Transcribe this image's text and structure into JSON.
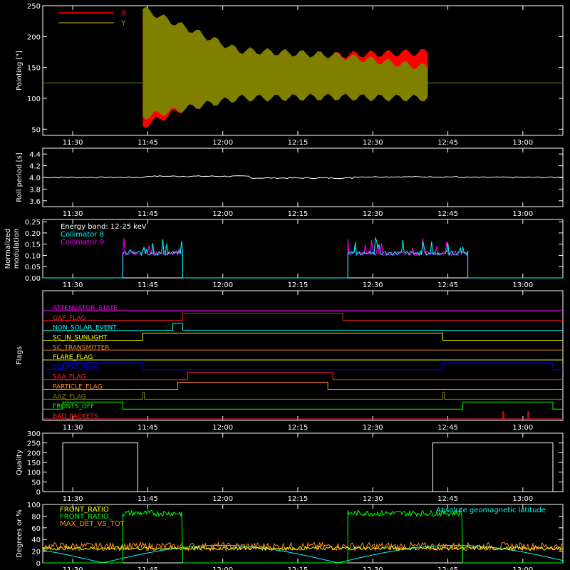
{
  "colors": {
    "axis": "#ffffff",
    "x_series": "#ff0000",
    "y_series": "#808000",
    "cyan": "#00ffff",
    "magenta": "#ff00ff",
    "green": "#00ff00",
    "orange": "#ff8c1a",
    "yellow": "#ffff00",
    "blue": "#0000ff",
    "bright_red": "#ff2020"
  },
  "time_ticks": [
    "11:30",
    "11:45",
    "12:00",
    "12:15",
    "12:30",
    "12:45",
    "13:00"
  ],
  "chart_data": [
    {
      "type": "area",
      "ylabel": "Pointing [\"]",
      "ylim": [
        40,
        250
      ],
      "yticks": [
        50,
        100,
        150,
        200,
        250
      ],
      "series": [
        {
          "name": "X",
          "segments": [
            {
              "start": "11:44",
              "end": "12:41",
              "upper": [
                240,
                175,
                170,
                175
              ],
              "lower": [
                55,
                120,
                102,
                100
              ]
            }
          ]
        },
        {
          "name": "Y",
          "segments": [
            {
              "start": "11:44",
              "end": "12:41",
              "upper": [
                245,
                178,
                170,
                150
              ],
              "lower": [
                70,
                100,
                102,
                100
              ]
            }
          ]
        }
      ],
      "baseline": 125
    },
    {
      "type": "line",
      "ylabel": "Roll period [s]",
      "ylim": [
        3.5,
        4.5
      ],
      "yticks": [
        "3.6",
        "3.8",
        "4.0",
        "4.2",
        "4.4"
      ],
      "series": [
        {
          "name": "",
          "values": [
            4.0,
            4.02,
            3.99,
            4.01,
            4.0,
            4.0
          ]
        }
      ]
    },
    {
      "type": "line",
      "ylabel": "Normalized modulation",
      "ylim": [
        0,
        0.26
      ],
      "yticks": [
        "0.00",
        "0.05",
        "0.10",
        "0.15",
        "0.20",
        "0.25"
      ],
      "annotation": "Energy band: 12-25 keV",
      "series": [
        {
          "name": "Collimator 8",
          "active": [
            [
              "11:40",
              "11:52"
            ],
            [
              "12:25",
              "12:49"
            ]
          ],
          "level": 0.1
        },
        {
          "name": "Collimator 9",
          "active": [
            [
              "11:40",
              "11:52"
            ],
            [
              "12:25",
              "12:49"
            ]
          ],
          "level": 0.1
        }
      ]
    },
    {
      "type": "line",
      "ylabel": "Flags",
      "series": [
        {
          "name": "ATTENUATOR_STATE",
          "color": "#ff00ff",
          "on": []
        },
        {
          "name": "GAP_FLAG",
          "color": "#ff2020",
          "on": [
            [
              "11:52",
              "12:24"
            ]
          ]
        },
        {
          "name": "NON_SOLAR_EVENT",
          "color": "#00ffff",
          "on": [
            [
              "11:50",
              "11:52"
            ]
          ]
        },
        {
          "name": "SC_IN_SUNLIGHT",
          "color": "#ffff00",
          "on": [
            [
              "11:44",
              "12:44"
            ]
          ]
        },
        {
          "name": "SC_TRANSMITTER",
          "color": "#ff8c1a",
          "on": []
        },
        {
          "name": "FLARE_FLAG",
          "color": "#ffff00",
          "on": []
        },
        {
          "name": "ECLIPSE_FLAG",
          "color": "#0000ff",
          "on": [
            [
              "11:28",
              "11:44"
            ],
            [
              "12:44",
              "13:06"
            ]
          ]
        },
        {
          "name": "SAA_FLAG",
          "color": "#ff2020",
          "on": [
            [
              "11:53",
              "12:22"
            ]
          ]
        },
        {
          "name": "PARTICLE_FLAG",
          "color": "#ff8c1a",
          "on": [
            [
              "11:51",
              "12:21"
            ]
          ]
        },
        {
          "name": "AAZ_FLAG",
          "color": "#808000",
          "on": [
            [
              "11:44",
              "11:44.3"
            ],
            [
              "12:44",
              "12:44.3"
            ]
          ]
        },
        {
          "name": "FRONTS_OFF",
          "color": "#00ff00",
          "on": [
            [
              "11:28",
              "11:40"
            ],
            [
              "12:48",
              "13:06"
            ]
          ]
        },
        {
          "name": "BAD_PACKETS",
          "color": "#ff2020",
          "on": [
            [
              "12:56",
              "12:56.2"
            ],
            [
              "13:01",
              "13:01.2"
            ]
          ]
        }
      ]
    },
    {
      "type": "line",
      "ylabel": "Quality",
      "ylim": [
        0,
        300
      ],
      "yticks": [
        0,
        50,
        100,
        150,
        200,
        250,
        300
      ],
      "series": [
        {
          "name": "",
          "segments": [
            [
              "11:28",
              "11:43",
              250
            ],
            [
              "12:42",
              "13:06",
              250
            ]
          ]
        }
      ]
    },
    {
      "type": "line",
      "ylabel": "Degrees or %",
      "ylim": [
        0,
        100
      ],
      "yticks": [
        0,
        20,
        40,
        60,
        80,
        100
      ],
      "annotation": "Absolute geomagnetic latitude",
      "series": [
        {
          "name": "FRONT_RATIO",
          "color": "#ffff00",
          "level": 25
        },
        {
          "name": "FRONT_RATIO_",
          "color": "#00ff00",
          "active": [
            [
              "11:40",
              "11:52"
            ],
            [
              "12:25",
              "12:48"
            ]
          ],
          "level": 85
        },
        {
          "name": "MAX_DET_VS_TOT",
          "color": "#ff8c1a",
          "level": 28
        },
        {
          "name": "Absolute geomagnetic latitude",
          "color": "#00ffff",
          "min": 0,
          "max": 30
        }
      ]
    }
  ]
}
